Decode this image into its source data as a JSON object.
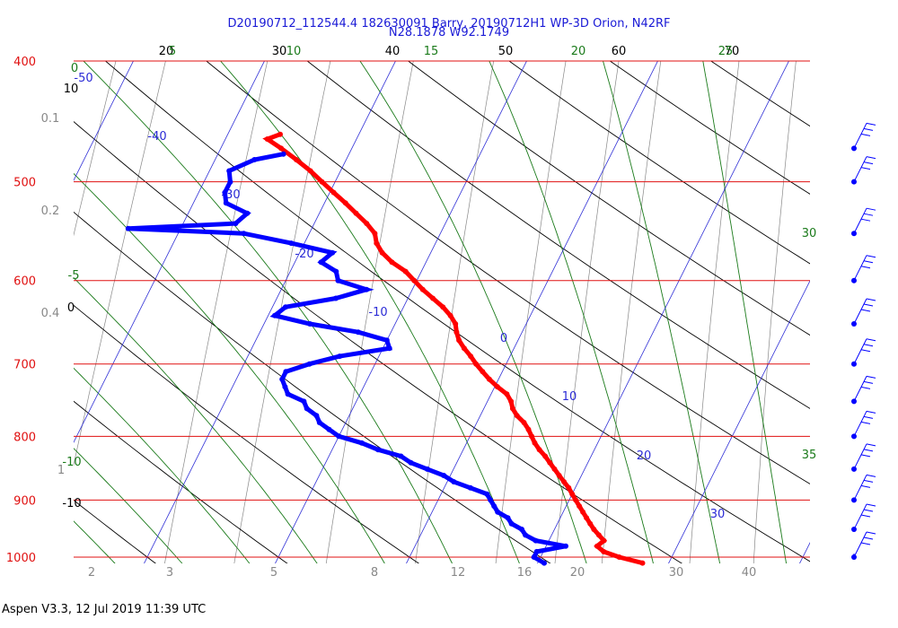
{
  "header": {
    "title_line1": "D20190712_112544.4 182630091 Barry, 20190712H1 WP-3D Orion, N42RF",
    "title_line2": "N28.1878 W92.1749"
  },
  "footer": {
    "text": "Aspen V3.3, 12 Jul 2019  11:39 UTC"
  },
  "colors": {
    "isobar": "#e01010",
    "isotherm": "#2b2bd6",
    "dry_adiabat": "#000000",
    "moist_adiabat": "#1a7a1a",
    "mixing_ratio": "#888888",
    "temperature": "#ff0000",
    "dewpoint": "#0000ff"
  },
  "chart_data": {
    "type": "line",
    "chart_kind": "skew-T log-P thermodynamic diagram",
    "y_axis": {
      "quantity": "pressure",
      "scale": "log",
      "range": [
        400,
        1000
      ],
      "tick_labels": [
        "400",
        "500",
        "600",
        "700",
        "800",
        "900",
        "1000"
      ]
    },
    "x_axis_bottom": {
      "quantity": "temperature",
      "range": [
        -2,
        44
      ],
      "tick_labels": [
        "2",
        "3",
        "5",
        "8",
        "12",
        "16",
        "20",
        "30",
        "40"
      ]
    },
    "isotherm_labels": [
      "-50",
      "-40",
      "-30",
      "-20",
      "-10",
      "0",
      "10",
      "20",
      "30"
    ],
    "dry_adiabat_top_labels": [
      "20",
      "30",
      "40",
      "50",
      "60",
      "70"
    ],
    "dry_adiabat_left_labels": [
      "10",
      "0",
      "-10"
    ],
    "moist_adiabat_top_labels": [
      "5",
      "10",
      "15",
      "20",
      "25"
    ],
    "moist_adiabat_left_labels": [
      "0",
      "-5",
      "-10"
    ],
    "moist_adiabat_right_labels": [
      "30",
      "35"
    ],
    "mixing_ratio_left_labels": [
      "0.1",
      "0.2",
      "0.4",
      "1"
    ],
    "series": [
      {
        "name": "Temperature",
        "points": [
          [
            1011,
            28.0
          ],
          [
            1000,
            26.0
          ],
          [
            990,
            24.6
          ],
          [
            980,
            23.9
          ],
          [
            970,
            24.2
          ],
          [
            960,
            23.6
          ],
          [
            950,
            23.0
          ],
          [
            940,
            22.5
          ],
          [
            930,
            22.0
          ],
          [
            920,
            21.5
          ],
          [
            910,
            21.0
          ],
          [
            900,
            20.5
          ],
          [
            890,
            20.0
          ],
          [
            880,
            19.5
          ],
          [
            870,
            18.9
          ],
          [
            860,
            18.3
          ],
          [
            850,
            17.7
          ],
          [
            840,
            17.1
          ],
          [
            830,
            16.5
          ],
          [
            820,
            15.8
          ],
          [
            810,
            15.2
          ],
          [
            800,
            14.7
          ],
          [
            790,
            14.2
          ],
          [
            780,
            13.6
          ],
          [
            770,
            12.8
          ],
          [
            760,
            12.2
          ],
          [
            750,
            11.8
          ],
          [
            740,
            11.2
          ],
          [
            730,
            10.2
          ],
          [
            720,
            9.3
          ],
          [
            710,
            8.5
          ],
          [
            700,
            7.7
          ],
          [
            690,
            7.0
          ],
          [
            680,
            6.2
          ],
          [
            670,
            5.5
          ],
          [
            660,
            5.0
          ],
          [
            650,
            4.6
          ],
          [
            640,
            3.9
          ],
          [
            630,
            3.0
          ],
          [
            620,
            1.9
          ],
          [
            610,
            0.8
          ],
          [
            600,
            -0.2
          ],
          [
            590,
            -1.2
          ],
          [
            580,
            -2.6
          ],
          [
            570,
            -3.7
          ],
          [
            560,
            -4.5
          ],
          [
            550,
            -5.0
          ],
          [
            540,
            -6.0
          ],
          [
            530,
            -7.2
          ],
          [
            520,
            -8.4
          ],
          [
            510,
            -9.7
          ],
          [
            500,
            -11.0
          ],
          [
            490,
            -12.3
          ],
          [
            480,
            -13.8
          ],
          [
            470,
            -15.4
          ],
          [
            462,
            -16.8
          ],
          [
            458,
            -16.0
          ]
        ]
      },
      {
        "name": "Dewpoint",
        "points": [
          [
            1011,
            20.5
          ],
          [
            1000,
            19.5
          ],
          [
            990,
            19.5
          ],
          [
            980,
            21.5
          ],
          [
            970,
            19.0
          ],
          [
            960,
            18.0
          ],
          [
            950,
            17.5
          ],
          [
            940,
            16.5
          ],
          [
            930,
            16.0
          ],
          [
            920,
            15.0
          ],
          [
            910,
            14.5
          ],
          [
            900,
            14.0
          ],
          [
            890,
            13.5
          ],
          [
            880,
            12.0
          ],
          [
            870,
            10.5
          ],
          [
            860,
            9.5
          ],
          [
            850,
            8.0
          ],
          [
            840,
            6.5
          ],
          [
            830,
            5.5
          ],
          [
            820,
            3.5
          ],
          [
            810,
            2.0
          ],
          [
            800,
            0.0
          ],
          [
            790,
            -1.0
          ],
          [
            780,
            -2.0
          ],
          [
            770,
            -2.5
          ],
          [
            760,
            -3.5
          ],
          [
            750,
            -4.0
          ],
          [
            740,
            -5.5
          ],
          [
            730,
            -6.0
          ],
          [
            720,
            -6.5
          ],
          [
            710,
            -6.5
          ],
          [
            700,
            -5.0
          ],
          [
            690,
            -3.0
          ],
          [
            680,
            0.5
          ],
          [
            670,
            0.0
          ],
          [
            660,
            -2.5
          ],
          [
            650,
            -6.5
          ],
          [
            640,
            -9.5
          ],
          [
            630,
            -9.0
          ],
          [
            620,
            -5.5
          ],
          [
            610,
            -3.5
          ],
          [
            600,
            -6.0
          ],
          [
            590,
            -6.5
          ],
          [
            580,
            -8.0
          ],
          [
            570,
            -7.5
          ],
          [
            560,
            -11.0
          ],
          [
            550,
            -15.0
          ],
          [
            545,
            -24.0
          ],
          [
            540,
            -16.0
          ],
          [
            530,
            -15.5
          ],
          [
            520,
            -17.5
          ],
          [
            510,
            -18.0
          ],
          [
            500,
            -18.0
          ],
          [
            490,
            -18.5
          ],
          [
            480,
            -17.0
          ],
          [
            475,
            -15.0
          ]
        ]
      }
    ],
    "wind_barbs": {
      "pressures": [
        1000,
        950,
        900,
        850,
        800,
        750,
        700,
        650,
        600,
        550,
        500,
        470
      ]
    }
  }
}
